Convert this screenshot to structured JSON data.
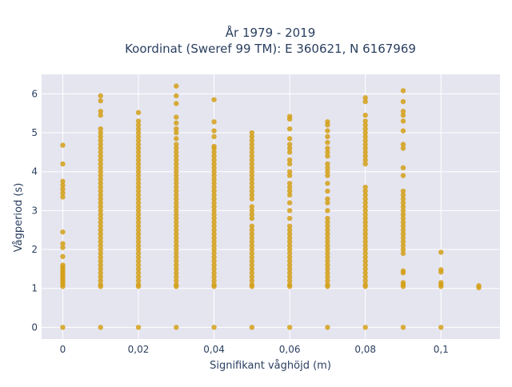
{
  "chart_data": {
    "type": "scatter",
    "title_line1": "År 1979 - 2019",
    "title_line2": "Koordinat (Sweref 99 TM): E 360621, N 6167969",
    "xlabel": "Signifikant våghöjd (m)",
    "ylabel": "Vågperiod (s)",
    "xlim": [
      -0.0056,
      0.1156
    ],
    "ylim": [
      -0.3,
      6.5
    ],
    "x_ticks": [
      {
        "value": 0,
        "label": "0"
      },
      {
        "value": 0.02,
        "label": "0,02"
      },
      {
        "value": 0.04,
        "label": "0,04"
      },
      {
        "value": 0.06,
        "label": "0,06"
      },
      {
        "value": 0.08,
        "label": "0,08"
      },
      {
        "value": 0.1,
        "label": "0,1"
      }
    ],
    "y_ticks": [
      {
        "value": 0,
        "label": "0"
      },
      {
        "value": 1,
        "label": "1"
      },
      {
        "value": 2,
        "label": "2"
      },
      {
        "value": 3,
        "label": "3"
      },
      {
        "value": 4,
        "label": "4"
      },
      {
        "value": 5,
        "label": "5"
      },
      {
        "value": 6,
        "label": "6"
      }
    ],
    "grid": true,
    "legend": "none",
    "marker_color": "#d4a017",
    "plot_bg": "#e5e5f0",
    "series": [
      {
        "points": [
          {
            "x": 0,
            "y": [
              0,
              1.05,
              1.1,
              1.15,
              1.2,
              1.25,
              1.3,
              1.35,
              1.4,
              1.45,
              1.5,
              1.55,
              1.6,
              1.82,
              2.05,
              2.15,
              2.45,
              3.35,
              3.45,
              3.55,
              3.65,
              3.75,
              4.2,
              4.68
            ]
          },
          {
            "x": 0.01,
            "y": [
              0,
              1.05,
              1.1,
              1.2,
              1.3,
              1.4,
              1.5,
              1.6,
              1.7,
              1.8,
              1.9,
              2.0,
              2.1,
              2.2,
              2.3,
              2.4,
              2.5,
              2.6,
              2.7,
              2.8,
              2.9,
              3.0,
              3.1,
              3.2,
              3.3,
              3.4,
              3.5,
              3.6,
              3.7,
              3.8,
              3.9,
              4.0,
              4.1,
              4.2,
              4.3,
              4.4,
              4.5,
              4.6,
              4.7,
              4.8,
              4.9,
              5.0,
              5.1,
              5.45,
              5.55,
              5.82,
              5.95
            ]
          },
          {
            "x": 0.02,
            "y": [
              0,
              1.05,
              1.1,
              1.2,
              1.3,
              1.4,
              1.5,
              1.6,
              1.7,
              1.8,
              1.9,
              2.0,
              2.1,
              2.2,
              2.3,
              2.4,
              2.5,
              2.6,
              2.7,
              2.8,
              2.9,
              3.0,
              3.1,
              3.2,
              3.3,
              3.4,
              3.5,
              3.6,
              3.7,
              3.8,
              3.9,
              4.0,
              4.1,
              4.2,
              4.3,
              4.4,
              4.5,
              4.6,
              4.7,
              4.8,
              4.9,
              5.0,
              5.1,
              5.2,
              5.3,
              5.52
            ]
          },
          {
            "x": 0.03,
            "y": [
              0,
              1.05,
              1.1,
              1.2,
              1.3,
              1.4,
              1.5,
              1.6,
              1.7,
              1.8,
              1.9,
              2.0,
              2.1,
              2.2,
              2.3,
              2.4,
              2.5,
              2.6,
              2.7,
              2.8,
              2.9,
              3.0,
              3.1,
              3.2,
              3.3,
              3.4,
              3.5,
              3.6,
              3.7,
              3.8,
              3.9,
              4.0,
              4.1,
              4.2,
              4.3,
              4.4,
              4.5,
              4.6,
              4.7,
              4.85,
              5.0,
              5.1,
              5.25,
              5.4,
              5.75,
              5.95,
              6.2
            ]
          },
          {
            "x": 0.04,
            "y": [
              0,
              1.05,
              1.1,
              1.2,
              1.3,
              1.4,
              1.5,
              1.6,
              1.7,
              1.8,
              1.9,
              2.0,
              2.1,
              2.2,
              2.3,
              2.4,
              2.5,
              2.6,
              2.7,
              2.8,
              2.9,
              3.0,
              3.1,
              3.2,
              3.3,
              3.4,
              3.5,
              3.6,
              3.7,
              3.8,
              3.9,
              4.0,
              4.1,
              4.2,
              4.3,
              4.4,
              4.5,
              4.6,
              4.65,
              4.9,
              5.05,
              5.28,
              5.85
            ]
          },
          {
            "x": 0.05,
            "y": [
              0,
              1.05,
              1.1,
              1.2,
              1.3,
              1.4,
              1.5,
              1.6,
              1.7,
              1.8,
              1.9,
              2.0,
              2.1,
              2.2,
              2.3,
              2.4,
              2.5,
              2.6,
              2.8,
              2.9,
              3.0,
              3.1,
              3.3,
              3.4,
              3.5,
              3.6,
              3.7,
              3.8,
              3.9,
              4.0,
              4.1,
              4.2,
              4.3,
              4.4,
              4.5,
              4.6,
              4.7,
              4.8,
              4.9,
              5.0
            ]
          },
          {
            "x": 0.06,
            "y": [
              0,
              1.05,
              1.1,
              1.2,
              1.3,
              1.4,
              1.5,
              1.6,
              1.7,
              1.8,
              1.9,
              2.0,
              2.1,
              2.2,
              2.3,
              2.4,
              2.5,
              2.6,
              2.8,
              3.0,
              3.2,
              3.4,
              3.5,
              3.6,
              3.7,
              3.9,
              4.0,
              4.2,
              4.3,
              4.5,
              4.6,
              4.7,
              4.85,
              5.1,
              5.35,
              5.42
            ]
          },
          {
            "x": 0.07,
            "y": [
              0,
              1.05,
              1.1,
              1.2,
              1.3,
              1.4,
              1.5,
              1.6,
              1.7,
              1.8,
              1.9,
              2.0,
              2.1,
              2.2,
              2.3,
              2.4,
              2.5,
              2.6,
              2.7,
              2.8,
              3.0,
              3.2,
              3.3,
              3.5,
              3.7,
              3.9,
              4.0,
              4.1,
              4.2,
              4.4,
              4.5,
              4.6,
              4.75,
              4.9,
              5.05,
              5.2,
              5.28
            ]
          },
          {
            "x": 0.08,
            "y": [
              0,
              1.05,
              1.1,
              1.2,
              1.3,
              1.4,
              1.5,
              1.6,
              1.7,
              1.8,
              1.9,
              2.0,
              2.1,
              2.2,
              2.3,
              2.4,
              2.5,
              2.6,
              2.7,
              2.8,
              2.9,
              3.0,
              3.1,
              3.2,
              3.3,
              3.4,
              3.5,
              3.6,
              4.2,
              4.3,
              4.4,
              4.5,
              4.6,
              4.7,
              4.8,
              4.9,
              5.0,
              5.1,
              5.2,
              5.3,
              5.45,
              5.8,
              5.9
            ]
          },
          {
            "x": 0.09,
            "y": [
              0,
              1.05,
              1.1,
              1.15,
              1.4,
              1.45,
              1.9,
              2.0,
              2.1,
              2.2,
              2.3,
              2.4,
              2.5,
              2.6,
              2.7,
              2.8,
              2.9,
              3.0,
              3.1,
              3.2,
              3.3,
              3.4,
              3.5,
              3.9,
              4.1,
              4.6,
              4.7,
              5.05,
              5.3,
              5.45,
              5.55,
              5.8,
              6.08
            ]
          },
          {
            "x": 0.1,
            "y": [
              0,
              1.05,
              1.1,
              1.15,
              1.42,
              1.48,
              1.93
            ]
          },
          {
            "x": 0.11,
            "y": [
              1.02,
              1.07
            ]
          }
        ]
      }
    ]
  }
}
